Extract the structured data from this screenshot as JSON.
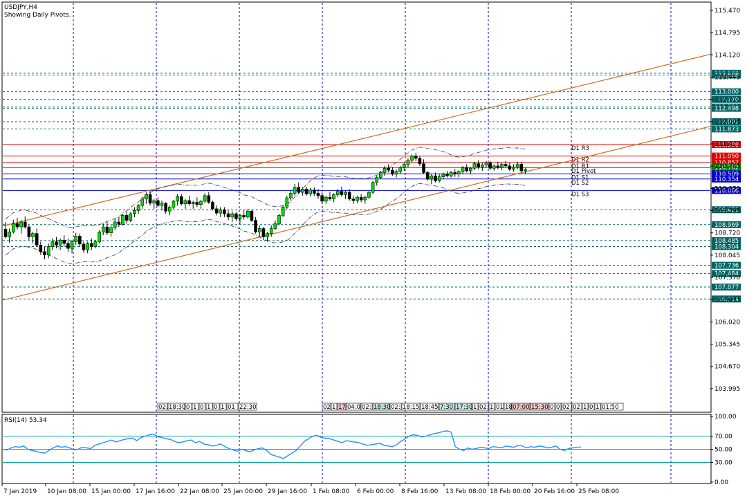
{
  "chart_data": {
    "type": "candlestick",
    "symbol": "USDJPY,H4",
    "subtitle": "Showing Daily Pivots.",
    "price_axis": {
      "ymin": 103.3,
      "ymax": 115.7,
      "ticks": [
        "115.470",
        "114.795",
        "114.120",
        "113.445",
        "112.770",
        "112.095",
        "111.420",
        "110.745",
        "110.070",
        "109.395",
        "108.720",
        "108.045",
        "107.370",
        "106.695",
        "106.020",
        "105.345",
        "104.670",
        "103.995"
      ]
    },
    "price_levels": [
      {
        "label": "113.563",
        "value": 113.563,
        "color": "#006464"
      },
      {
        "label": "113.508",
        "value": 113.508,
        "color": "#006464"
      },
      {
        "label": "113.000",
        "value": 113.0,
        "color": "#006464"
      },
      {
        "label": "112.770",
        "value": 112.77,
        "color": "#006464"
      },
      {
        "label": "112.538",
        "value": 112.538,
        "color": "#006464"
      },
      {
        "label": "112.498",
        "value": 112.498,
        "color": "#006464"
      },
      {
        "label": "112.091",
        "value": 112.091,
        "color": "#006464"
      },
      {
        "label": "111.873",
        "value": 111.873,
        "color": "#006464"
      },
      {
        "label": "109.421",
        "value": 109.421,
        "color": "#006464"
      },
      {
        "label": "108.969",
        "value": 108.969,
        "color": "#006464"
      },
      {
        "label": "108.485",
        "value": 108.485,
        "color": "#006464"
      },
      {
        "label": "108.304",
        "value": 108.304,
        "color": "#006464"
      },
      {
        "label": "107.736",
        "value": 107.736,
        "color": "#006464"
      },
      {
        "label": "107.484",
        "value": 107.484,
        "color": "#006464"
      },
      {
        "label": "107.077",
        "value": 107.077,
        "color": "#006464"
      },
      {
        "label": "106.714",
        "value": 106.714,
        "color": "#006464"
      }
    ],
    "pivots": [
      {
        "name": "D1 R3",
        "value": 111.398,
        "label": "111.398",
        "color": "#e00000"
      },
      {
        "name": "D1 R2",
        "value": 111.05,
        "label": "111.050",
        "color": "#e00000"
      },
      {
        "name": "D1 R1",
        "value": 110.857,
        "label": "110.857",
        "color": "#e00000"
      },
      {
        "name": "D1 Pivot",
        "value": 110.702,
        "label": "110.702",
        "color": "#008000"
      },
      {
        "name": "D1 S1",
        "value": 110.509,
        "label": "110.509",
        "color": "#0000d0"
      },
      {
        "name": "D1 S2",
        "value": 110.354,
        "label": "110.354",
        "color": "#0000d0"
      },
      {
        "name": "D1 S3",
        "value": 110.006,
        "label": "110.006",
        "color": "#0000d0"
      }
    ],
    "time_labels": [
      "7 Jan 2019",
      "10 Jan 08:00",
      "15 Jan 00:00",
      "17 Jan 16:00",
      "22 Jan 08:00",
      "25 Jan 00:00",
      "29 Jan 16:00",
      "1 Feb 08:00",
      "6 Feb 00:00",
      "8 Feb 16:00",
      "13 Feb 08:00",
      "18 Feb 00:00",
      "20 Feb 16:00",
      "25 Feb 08:00"
    ],
    "session_labels": {
      "group1": [
        "02:",
        "18:30",
        "0",
        "1",
        "0",
        "1",
        "0",
        "1",
        "01",
        "22:30"
      ],
      "group2": [
        "02",
        "1",
        "17",
        "04:0",
        "02:",
        "18:30",
        "02:",
        "18:15",
        "18:45",
        "7:30",
        "17:30",
        "1",
        "02:",
        "1",
        "01",
        "18",
        "07:00",
        "15:30",
        "0",
        "0",
        "02",
        "02",
        "1",
        "0",
        "1",
        "01:50"
      ]
    },
    "candles": [
      [
        108.83,
        109.05,
        108.55,
        108.6
      ],
      [
        108.6,
        108.85,
        108.42,
        108.75
      ],
      [
        108.75,
        109.12,
        108.7,
        109.0
      ],
      [
        109.0,
        109.18,
        108.82,
        108.9
      ],
      [
        108.9,
        109.1,
        108.7,
        109.05
      ],
      [
        109.05,
        109.22,
        108.85,
        108.9
      ],
      [
        108.9,
        108.95,
        108.5,
        108.6
      ],
      [
        108.6,
        108.75,
        108.4,
        108.7
      ],
      [
        108.7,
        108.85,
        108.3,
        108.35
      ],
      [
        108.35,
        108.45,
        108.05,
        108.15
      ],
      [
        108.15,
        108.3,
        107.92,
        108.05
      ],
      [
        108.05,
        108.4,
        107.95,
        108.3
      ],
      [
        108.3,
        108.55,
        108.2,
        108.45
      ],
      [
        108.45,
        108.6,
        108.25,
        108.35
      ],
      [
        108.35,
        108.55,
        108.2,
        108.5
      ],
      [
        108.5,
        108.65,
        108.3,
        108.4
      ],
      [
        108.4,
        108.55,
        108.15,
        108.25
      ],
      [
        108.25,
        108.5,
        108.1,
        108.45
      ],
      [
        108.45,
        108.72,
        108.35,
        108.62
      ],
      [
        108.62,
        108.7,
        108.3,
        108.38
      ],
      [
        108.38,
        108.45,
        108.12,
        108.2
      ],
      [
        108.2,
        108.45,
        108.1,
        108.4
      ],
      [
        108.4,
        108.55,
        108.2,
        108.3
      ],
      [
        108.3,
        108.5,
        108.25,
        108.45
      ],
      [
        108.45,
        108.8,
        108.4,
        108.75
      ],
      [
        108.75,
        109.0,
        108.65,
        108.9
      ],
      [
        108.9,
        109.05,
        108.65,
        108.72
      ],
      [
        108.72,
        108.95,
        108.6,
        108.88
      ],
      [
        108.88,
        109.15,
        108.8,
        109.05
      ],
      [
        109.05,
        109.2,
        108.9,
        108.98
      ],
      [
        108.98,
        109.3,
        108.95,
        109.25
      ],
      [
        109.25,
        109.35,
        109.0,
        109.1
      ],
      [
        109.1,
        109.35,
        109.05,
        109.3
      ],
      [
        109.3,
        109.5,
        109.2,
        109.4
      ],
      [
        109.4,
        109.6,
        109.3,
        109.55
      ],
      [
        109.55,
        109.82,
        109.45,
        109.75
      ],
      [
        109.75,
        109.95,
        109.6,
        109.88
      ],
      [
        109.88,
        110.0,
        109.55,
        109.62
      ],
      [
        109.62,
        109.75,
        109.45,
        109.7
      ],
      [
        109.7,
        109.8,
        109.5,
        109.55
      ],
      [
        109.55,
        109.7,
        109.4,
        109.62
      ],
      [
        109.62,
        109.65,
        109.3,
        109.38
      ],
      [
        109.38,
        109.55,
        109.25,
        109.5
      ],
      [
        109.5,
        109.72,
        109.45,
        109.68
      ],
      [
        109.68,
        109.9,
        109.55,
        109.82
      ],
      [
        109.82,
        109.9,
        109.55,
        109.6
      ],
      [
        109.6,
        109.75,
        109.45,
        109.7
      ],
      [
        109.7,
        109.85,
        109.55,
        109.6
      ],
      [
        109.6,
        109.7,
        109.45,
        109.65
      ],
      [
        109.65,
        109.8,
        109.5,
        109.58
      ],
      [
        109.58,
        109.72,
        109.45,
        109.68
      ],
      [
        109.68,
        109.92,
        109.62,
        109.85
      ],
      [
        109.85,
        109.95,
        109.6,
        109.65
      ],
      [
        109.65,
        109.7,
        109.4,
        109.45
      ],
      [
        109.45,
        109.55,
        109.25,
        109.32
      ],
      [
        109.32,
        109.5,
        109.2,
        109.42
      ],
      [
        109.42,
        109.5,
        109.2,
        109.3
      ],
      [
        109.3,
        109.4,
        109.1,
        109.2
      ],
      [
        109.2,
        109.38,
        109.05,
        109.3
      ],
      [
        109.3,
        109.35,
        109.08,
        109.15
      ],
      [
        109.15,
        109.3,
        109.0,
        109.25
      ],
      [
        109.25,
        109.4,
        109.12,
        109.2
      ],
      [
        109.2,
        109.45,
        109.15,
        109.38
      ],
      [
        109.38,
        109.42,
        109.05,
        109.1
      ],
      [
        109.1,
        109.2,
        108.7,
        108.75
      ],
      [
        108.75,
        108.95,
        108.6,
        108.85
      ],
      [
        108.85,
        108.9,
        108.5,
        108.6
      ],
      [
        108.6,
        108.75,
        108.45,
        108.7
      ],
      [
        108.7,
        108.95,
        108.6,
        108.85
      ],
      [
        108.85,
        109.1,
        108.8,
        109.0
      ],
      [
        109.0,
        109.3,
        108.95,
        109.25
      ],
      [
        109.25,
        109.55,
        109.2,
        109.5
      ],
      [
        109.5,
        109.85,
        109.45,
        109.78
      ],
      [
        109.78,
        110.0,
        109.7,
        109.92
      ],
      [
        109.92,
        110.2,
        109.85,
        110.1
      ],
      [
        110.1,
        110.25,
        109.9,
        109.95
      ],
      [
        109.95,
        110.1,
        109.85,
        110.05
      ],
      [
        110.05,
        110.12,
        109.85,
        109.9
      ],
      [
        109.9,
        110.08,
        109.82,
        110.02
      ],
      [
        110.02,
        110.1,
        109.85,
        109.92
      ],
      [
        109.92,
        110.05,
        109.75,
        109.85
      ],
      [
        109.85,
        109.95,
        109.6,
        109.68
      ],
      [
        109.68,
        109.85,
        109.6,
        109.8
      ],
      [
        109.8,
        109.95,
        109.7,
        109.75
      ],
      [
        109.75,
        109.92,
        109.65,
        109.88
      ],
      [
        109.88,
        110.05,
        109.8,
        109.98
      ],
      [
        109.98,
        110.12,
        109.82,
        109.88
      ],
      [
        109.88,
        110.0,
        109.75,
        109.95
      ],
      [
        109.95,
        110.05,
        109.7,
        109.75
      ],
      [
        109.75,
        109.85,
        109.6,
        109.7
      ],
      [
        109.7,
        109.85,
        109.62,
        109.8
      ],
      [
        109.8,
        109.9,
        109.65,
        109.72
      ],
      [
        109.72,
        109.85,
        109.6,
        109.8
      ],
      [
        109.8,
        110.0,
        109.75,
        109.95
      ],
      [
        109.95,
        110.3,
        109.9,
        110.25
      ],
      [
        110.25,
        110.45,
        110.15,
        110.4
      ],
      [
        110.4,
        110.6,
        110.35,
        110.55
      ],
      [
        110.55,
        110.75,
        110.45,
        110.68
      ],
      [
        110.68,
        110.8,
        110.55,
        110.62
      ],
      [
        110.62,
        110.72,
        110.45,
        110.5
      ],
      [
        110.5,
        110.65,
        110.4,
        110.58
      ],
      [
        110.58,
        110.75,
        110.5,
        110.7
      ],
      [
        110.7,
        110.85,
        110.6,
        110.8
      ],
      [
        110.8,
        110.98,
        110.7,
        110.92
      ],
      [
        110.92,
        111.1,
        110.85,
        111.05
      ],
      [
        111.05,
        111.15,
        110.9,
        110.98
      ],
      [
        110.98,
        111.05,
        110.75,
        110.82
      ],
      [
        110.82,
        110.95,
        110.5,
        110.55
      ],
      [
        110.55,
        110.6,
        110.3,
        110.35
      ],
      [
        110.35,
        110.5,
        110.2,
        110.45
      ],
      [
        110.45,
        110.55,
        110.25,
        110.3
      ],
      [
        110.3,
        110.5,
        110.25,
        110.42
      ],
      [
        110.42,
        110.55,
        110.35,
        110.5
      ],
      [
        110.5,
        110.6,
        110.4,
        110.45
      ],
      [
        110.45,
        110.6,
        110.4,
        110.55
      ],
      [
        110.55,
        110.65,
        110.42,
        110.5
      ],
      [
        110.5,
        110.62,
        110.4,
        110.58
      ],
      [
        110.58,
        110.75,
        110.5,
        110.7
      ],
      [
        110.7,
        110.8,
        110.55,
        110.6
      ],
      [
        110.6,
        110.72,
        110.5,
        110.68
      ],
      [
        110.68,
        110.88,
        110.62,
        110.82
      ],
      [
        110.82,
        110.92,
        110.65,
        110.72
      ],
      [
        110.72,
        110.85,
        110.6,
        110.78
      ],
      [
        110.78,
        110.9,
        110.7,
        110.85
      ],
      [
        110.85,
        110.9,
        110.62,
        110.68
      ],
      [
        110.68,
        110.8,
        110.6,
        110.75
      ],
      [
        110.75,
        110.88,
        110.65,
        110.7
      ],
      [
        110.7,
        110.85,
        110.62,
        110.8
      ],
      [
        110.8,
        110.9,
        110.7,
        110.75
      ],
      [
        110.75,
        110.85,
        110.6,
        110.65
      ],
      [
        110.65,
        110.8,
        110.58,
        110.72
      ],
      [
        110.72,
        110.88,
        110.65,
        110.8
      ],
      [
        110.8,
        110.85,
        110.55,
        110.6
      ],
      [
        110.6,
        110.7,
        110.5,
        110.65
      ]
    ],
    "channel": {
      "upper": [
        [
          0,
          108.95
        ],
        [
          146,
          113.15
        ]
      ],
      "lower": [
        [
          0,
          106.7
        ],
        [
          146,
          110.95
        ]
      ]
    },
    "rsi": {
      "label": "RSI(14) 53.34",
      "levels": [
        70,
        50,
        30
      ],
      "ticks": [
        "100.00",
        "70.00",
        "50.00",
        "30.00",
        "0.00"
      ],
      "values": [
        50,
        49,
        52,
        54,
        53,
        55,
        50,
        48,
        47,
        45,
        44,
        48,
        52,
        55,
        53,
        54,
        52,
        49,
        50,
        53,
        52,
        51,
        56,
        58,
        60,
        62,
        64,
        61,
        63,
        65,
        66,
        67,
        63,
        68,
        70,
        72,
        73,
        69,
        68,
        66,
        65,
        62,
        60,
        61,
        63,
        64,
        60,
        62,
        58,
        57,
        55,
        56,
        58,
        54,
        51,
        49,
        47,
        50,
        48,
        46,
        49,
        51,
        52,
        48,
        42,
        40,
        38,
        36,
        40,
        44,
        48,
        55,
        62,
        66,
        70,
        71,
        68,
        67,
        66,
        64,
        62,
        60,
        63,
        62,
        61,
        60,
        58,
        56,
        57,
        58,
        59,
        56,
        55,
        54,
        57,
        62,
        66,
        70,
        72,
        71,
        69,
        70,
        72,
        74,
        75,
        77,
        78,
        76,
        54,
        50,
        48,
        52,
        50,
        51,
        53,
        52,
        51,
        54,
        53,
        52,
        55,
        54,
        53,
        56,
        55,
        52,
        54,
        53,
        55,
        54,
        52,
        53,
        55,
        50,
        48,
        51,
        52,
        53,
        53.34
      ]
    }
  }
}
